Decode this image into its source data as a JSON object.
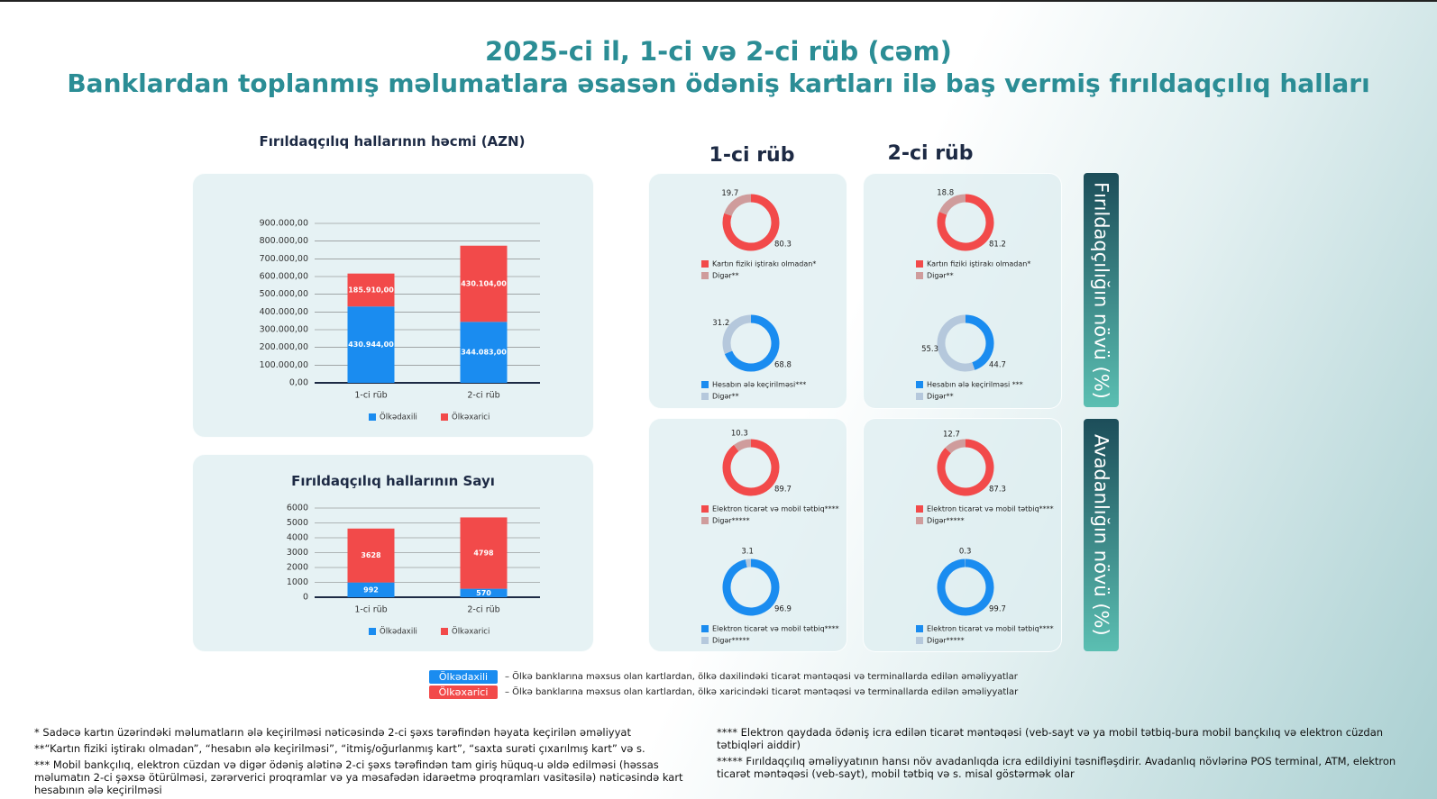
{
  "header": {
    "title": "2025-ci il, 1-ci və 2-ci rüb (cəm)",
    "subtitle": "Banklardan toplanmış məlumatlara əsasən ödəniş kartları ilə baş vermiş fırıldaqçılıq halları"
  },
  "quarter_labels": [
    "1-ci rüb",
    "2-ci rüb"
  ],
  "side_labels": [
    "Fırıldaqçılığın növü (%)",
    "Avadanlığın növü (%)"
  ],
  "chart_data": [
    {
      "type": "bar",
      "stacked": true,
      "title": "Fırıldaqçılıq hallarının həcmi (AZN)",
      "categories": [
        "1-ci rüb",
        "2-ci rüb"
      ],
      "series": [
        {
          "name": "Ölkədaxili",
          "color": "#1a8cf0",
          "values": [
            430944.0,
            344083.0
          ],
          "value_labels": [
            "430.944,00",
            "344.083,00"
          ]
        },
        {
          "name": "Ölkəxarici",
          "color": "#f24a4a",
          "values": [
            185910.0,
            430104.0
          ],
          "value_labels": [
            "185.910,00",
            "430.104,00"
          ]
        }
      ],
      "ylim": [
        0,
        900000
      ],
      "yticks": [
        {
          "value": 0,
          "label": "0,00"
        },
        {
          "value": 100000,
          "label": "100.000,00"
        },
        {
          "value": 200000,
          "label": "200.000,00"
        },
        {
          "value": 300000,
          "label": "300.000,00"
        },
        {
          "value": 400000,
          "label": "400.000,00"
        },
        {
          "value": 500000,
          "label": "500.000,00"
        },
        {
          "value": 600000,
          "label": "600.000,00"
        },
        {
          "value": 700000,
          "label": "700.000,00"
        },
        {
          "value": 800000,
          "label": "800.000,00"
        },
        {
          "value": 900000,
          "label": "900.000,00"
        }
      ],
      "grid": true
    },
    {
      "type": "bar",
      "stacked": true,
      "title": "Fırıldaqçılıq hallarının Sayı",
      "categories": [
        "1-ci rüb",
        "2-ci rüb"
      ],
      "series": [
        {
          "name": "Ölkədaxili",
          "color": "#1a8cf0",
          "values": [
            992,
            570
          ]
        },
        {
          "name": "Ölkəxarici",
          "color": "#f24a4a",
          "values": [
            3628,
            4798
          ]
        }
      ],
      "ylim": [
        0,
        6000
      ],
      "yticks": [
        0,
        1000,
        2000,
        3000,
        4000,
        5000,
        6000
      ],
      "grid": true
    },
    {
      "type": "donut",
      "categories": [
        "Kartın fiziki iştirakı olmadan*",
        "Digər**"
      ],
      "values": [
        80.3,
        19.7
      ],
      "colors": [
        "#f24a4a",
        "#cf9c9c"
      ]
    },
    {
      "type": "donut",
      "categories": [
        "Hesabın ələ keçirilməsi***",
        "Digər**"
      ],
      "values": [
        68.8,
        31.2
      ],
      "colors": [
        "#1a8cf0",
        "#b5c8dc"
      ]
    },
    {
      "type": "donut",
      "categories": [
        "Kartın fiziki iştirakı olmadan*",
        "Digər**"
      ],
      "values": [
        81.2,
        18.8
      ],
      "colors": [
        "#f24a4a",
        "#cf9c9c"
      ]
    },
    {
      "type": "donut",
      "categories": [
        "Hesabın ələ keçirilməsi ***",
        "Digər**"
      ],
      "values": [
        44.7,
        55.3
      ],
      "colors": [
        "#1a8cf0",
        "#b5c8dc"
      ]
    },
    {
      "type": "donut",
      "categories": [
        "Elektron ticarət və mobil tətbiq****",
        "Digər*****"
      ],
      "values": [
        89.7,
        10.3
      ],
      "colors": [
        "#f24a4a",
        "#cf9c9c"
      ]
    },
    {
      "type": "donut",
      "categories": [
        "Elektron ticarət və mobil tətbiq****",
        "Digər*****"
      ],
      "values": [
        96.9,
        3.1
      ],
      "colors": [
        "#1a8cf0",
        "#b5c8dc"
      ]
    },
    {
      "type": "donut",
      "categories": [
        "Elektron ticarət və mobil tətbiq****",
        "Digər*****"
      ],
      "values": [
        87.3,
        12.7
      ],
      "colors": [
        "#f24a4a",
        "#cf9c9c"
      ]
    },
    {
      "type": "donut",
      "categories": [
        "Elektron ticarət və mobil tətbiq****",
        "Digər*****"
      ],
      "values": [
        99.7,
        0.3
      ],
      "colors": [
        "#1a8cf0",
        "#b5c8dc"
      ]
    }
  ],
  "legend_notes": [
    {
      "badge": "Ölkədaxili",
      "text": "– Ölkə banklarına məxsus olan kartlardan, ölkə daxilindəki ticarət məntəqəsi və terminallarda edilən əməliyyatlar"
    },
    {
      "badge": "Ölkəxarici",
      "text": "– Ölkə banklarına məxsus olan kartlardan, ölkə xaricindəki ticarət məntəqəsi və terminallarda edilən əməliyyatlar"
    }
  ],
  "footnotes_left": [
    "* Sadəcə kartın üzərindəki məlumatların ələ keçirilməsi nəticəsində 2-ci şəxs tərəfindən həyata keçirilən əməliyyat",
    "**“Kartın fiziki iştirakı olmadan”, “hesabın ələ keçirilməsi”, “itmiş/oğurlanmış kart”, “saxta surəti çıxarılmış kart” və s.",
    "*** Mobil bankçılıq, elektron cüzdan və digər ödəniş alətinə 2-ci şəxs tərəfindən tam giriş hüquq-u əldə edilməsi (həssas məlumatın 2-ci şəxsə ötürülməsi, zərərverici proqramlar və ya məsafədən idarəetmə proqramları vasitəsilə) nəticəsində kart hesabının ələ keçirilməsi"
  ],
  "footnotes_right": [
    "**** Elektron qaydada ödəniş icra edilən ticarət məntəqəsi (veb-sayt və ya mobil tətbiq-bura mobil bançkılıq və elektron cüzdan tətbiqləri aiddir)",
    "***** Fırıldaqçılıq əməliyyatının hansı növ avadanlıqda icra edildiyini təsnifləşdirir. Avadanlıq növlərinə POS terminal, ATM, elektron ticarət məntəqəsi (veb-sayt), mobil tətbiq və s. misal göstərmək olar"
  ]
}
